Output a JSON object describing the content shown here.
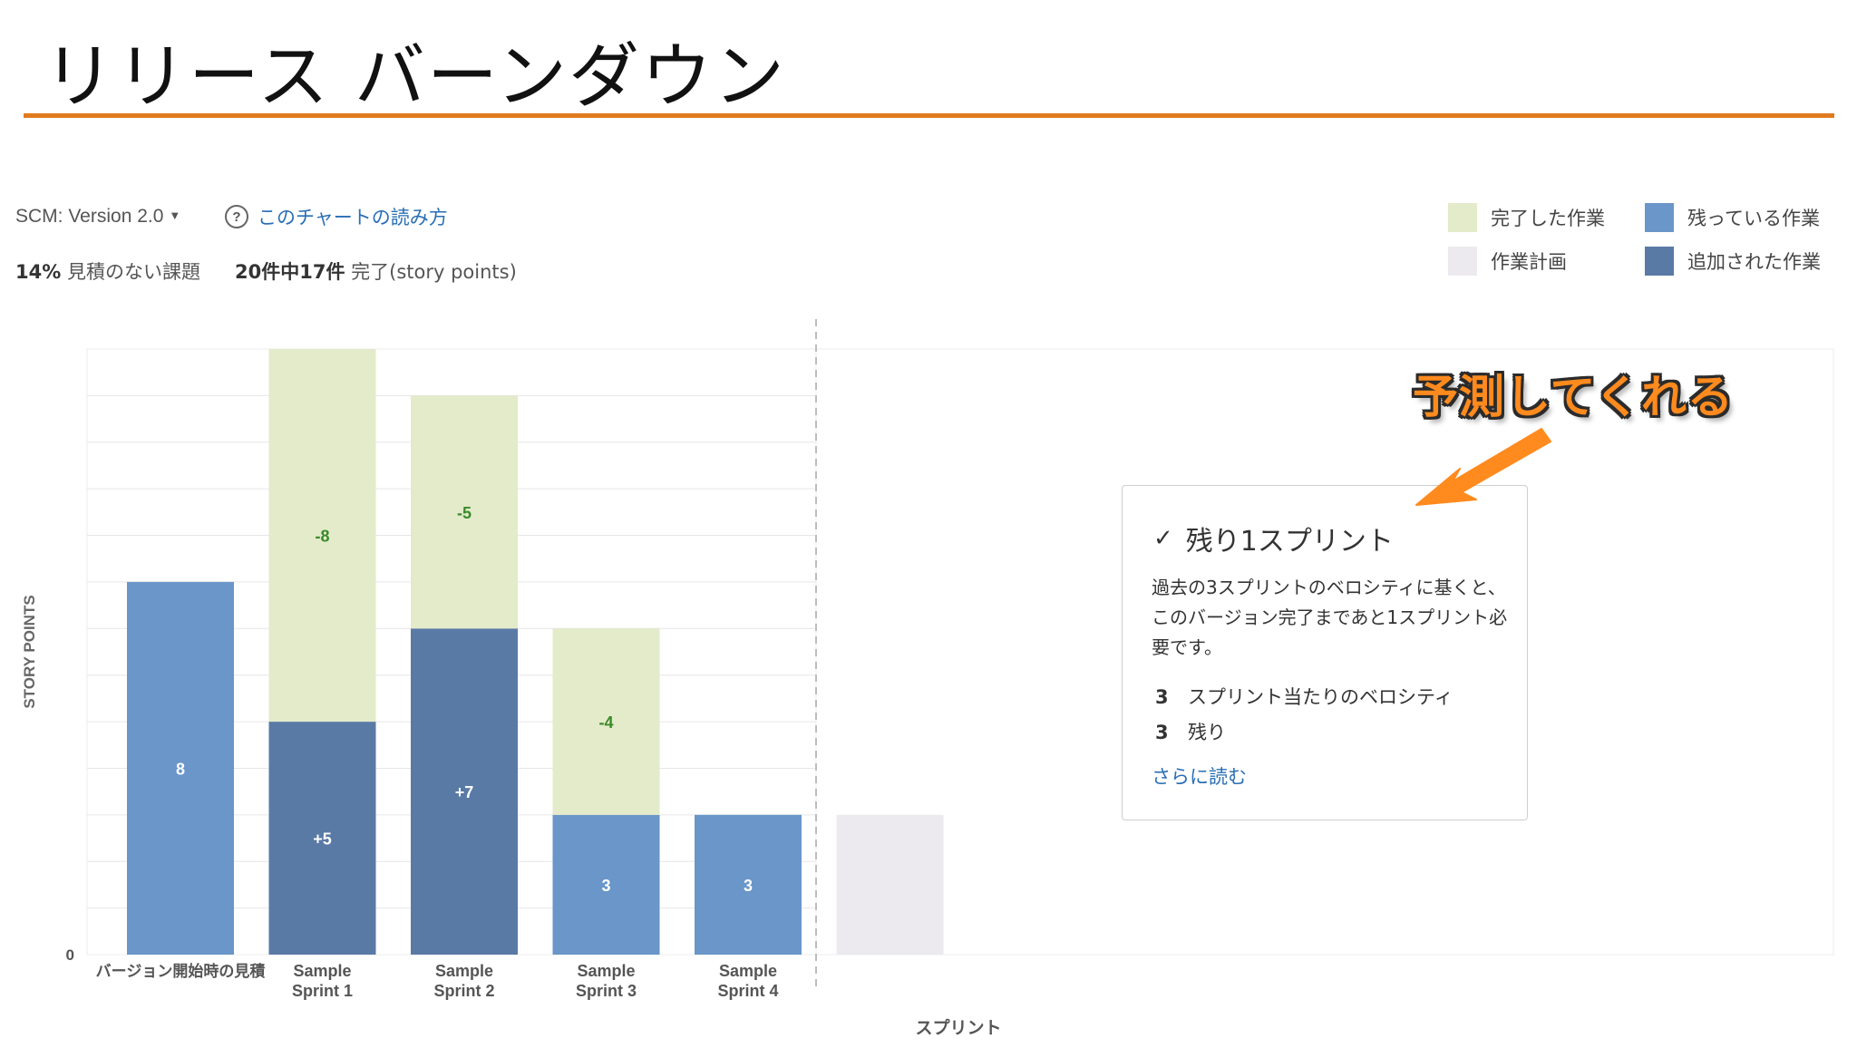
{
  "slide": {
    "title": "リリース バーンダウン"
  },
  "header": {
    "version_label": "SCM: Version 2.0",
    "help_link": "このチャートの読み方",
    "unestimated_pct": "14%",
    "unestimated_label": "見積のない課題",
    "completed_count": "20件中17件",
    "completed_label": "完了(story points)"
  },
  "legend": [
    {
      "label": "完了した作業",
      "color": "#e3ebca"
    },
    {
      "label": "残っている作業",
      "color": "#6a96c9"
    },
    {
      "label": "作業計画",
      "color": "#eceaee"
    },
    {
      "label": "追加された作業",
      "color": "#5a7aa6"
    }
  ],
  "colors": {
    "completed": "#e3ebca",
    "remaining": "#6a96c9",
    "added": "#5a7aa6",
    "forecast": "#eceaee",
    "completed_label": "#3a8a2a",
    "accent_rule": "#e07a1f",
    "callout": "#ff8a1e"
  },
  "chart_data": {
    "type": "bar",
    "stacked": true,
    "ylabel": "STORY POINTS",
    "xlabel": "スプリント",
    "y_tick_labels": [
      "0"
    ],
    "ylim": [
      0,
      13
    ],
    "grid": true,
    "categories": [
      "バージョン開始時の見積",
      "Sample Sprint 1",
      "Sample Sprint 2",
      "Sample Sprint 3",
      "Sample Sprint 4",
      ""
    ],
    "series": [
      {
        "name": "残っている作業",
        "values": [
          8,
          0,
          0,
          3,
          3,
          0
        ],
        "labels": [
          "8",
          "",
          "",
          "3",
          "3",
          ""
        ]
      },
      {
        "name": "追加された作業",
        "values": [
          0,
          5,
          7,
          0,
          0,
          0
        ],
        "labels": [
          "",
          "+5",
          "+7",
          "",
          "",
          ""
        ]
      },
      {
        "name": "完了した作業",
        "values": [
          0,
          8,
          5,
          4,
          0,
          0
        ],
        "labels": [
          "",
          "-8",
          "-5",
          "-4",
          "",
          ""
        ]
      },
      {
        "name": "作業計画",
        "values": [
          0,
          0,
          0,
          0,
          0,
          3
        ],
        "labels": [
          "",
          "",
          "",
          "",
          "",
          ""
        ]
      }
    ]
  },
  "forecast": {
    "title": "残り1スプリント",
    "description": "過去の3スプリントのベロシティに基くと、このバージョン完了まであと1スプリント必要です。",
    "velocity_value": "3",
    "velocity_label": "スプリント当たりのベロシティ",
    "remaining_value": "3",
    "remaining_label": "残り",
    "read_more": "さらに読む"
  },
  "callout": {
    "text": "予測してくれる"
  }
}
